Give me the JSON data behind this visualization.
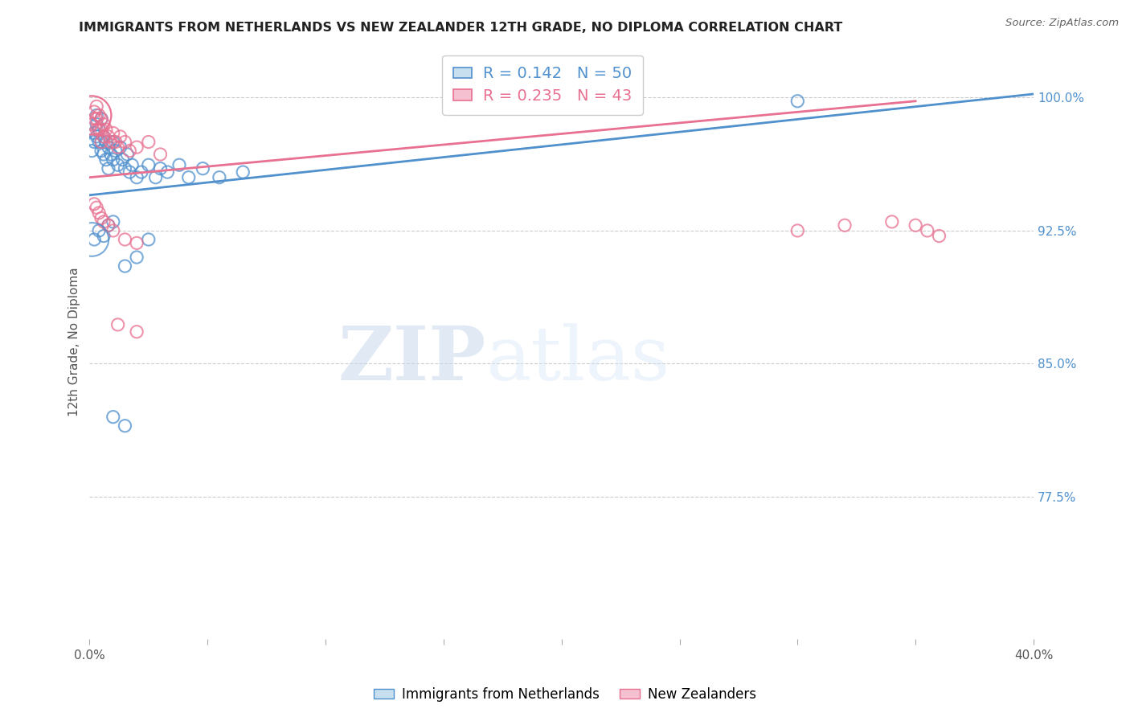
{
  "title": "IMMIGRANTS FROM NETHERLANDS VS NEW ZEALANDER 12TH GRADE, NO DIPLOMA CORRELATION CHART",
  "source": "Source: ZipAtlas.com",
  "ylabel": "12th Grade, No Diploma",
  "xlim": [
    0.0,
    0.4
  ],
  "ylim": [
    0.695,
    1.03
  ],
  "yticks_right": [
    1.0,
    0.925,
    0.85,
    0.775
  ],
  "ytick_right_labels": [
    "100.0%",
    "92.5%",
    "85.0%",
    "77.5%"
  ],
  "blue_color": "#4F90CD",
  "pink_color": "#E87090",
  "blue_R": 0.142,
  "blue_N": 50,
  "pink_R": 0.235,
  "pink_N": 43,
  "legend_label_blue": "Immigrants from Netherlands",
  "legend_label_pink": "New Zealanders",
  "watermark_zip": "ZIP",
  "watermark_atlas": "atlas",
  "blue_scatter_x": [
    0.001,
    0.002,
    0.002,
    0.003,
    0.003,
    0.003,
    0.004,
    0.004,
    0.005,
    0.005,
    0.005,
    0.006,
    0.006,
    0.007,
    0.007,
    0.008,
    0.008,
    0.009,
    0.01,
    0.01,
    0.011,
    0.012,
    0.013,
    0.014,
    0.015,
    0.016,
    0.017,
    0.018,
    0.02,
    0.022,
    0.025,
    0.028,
    0.03,
    0.033,
    0.038,
    0.042,
    0.048,
    0.055,
    0.065,
    0.002,
    0.004,
    0.006,
    0.008,
    0.01,
    0.015,
    0.02,
    0.025,
    0.01,
    0.015,
    0.3
  ],
  "blue_scatter_y": [
    0.97,
    0.98,
    0.975,
    0.985,
    0.978,
    0.99,
    0.982,
    0.975,
    0.988,
    0.975,
    0.97,
    0.978,
    0.968,
    0.975,
    0.965,
    0.972,
    0.96,
    0.968,
    0.975,
    0.965,
    0.97,
    0.962,
    0.972,
    0.965,
    0.96,
    0.968,
    0.958,
    0.962,
    0.955,
    0.958,
    0.962,
    0.955,
    0.96,
    0.958,
    0.962,
    0.955,
    0.96,
    0.955,
    0.958,
    0.92,
    0.925,
    0.922,
    0.928,
    0.93,
    0.905,
    0.91,
    0.92,
    0.82,
    0.815,
    0.998
  ],
  "blue_scatter_size": [
    30,
    30,
    30,
    30,
    30,
    30,
    30,
    30,
    30,
    30,
    30,
    30,
    30,
    30,
    30,
    30,
    30,
    30,
    30,
    30,
    30,
    30,
    30,
    30,
    30,
    30,
    30,
    30,
    30,
    30,
    30,
    30,
    30,
    30,
    30,
    30,
    30,
    30,
    30,
    30,
    30,
    30,
    30,
    30,
    30,
    30,
    30,
    30,
    30,
    30
  ],
  "pink_scatter_x": [
    0.001,
    0.001,
    0.002,
    0.002,
    0.003,
    0.003,
    0.003,
    0.004,
    0.004,
    0.005,
    0.005,
    0.005,
    0.006,
    0.006,
    0.007,
    0.008,
    0.009,
    0.01,
    0.011,
    0.012,
    0.013,
    0.015,
    0.017,
    0.02,
    0.025,
    0.03,
    0.002,
    0.003,
    0.004,
    0.005,
    0.006,
    0.008,
    0.01,
    0.015,
    0.02,
    0.012,
    0.02,
    0.3,
    0.32,
    0.34,
    0.35,
    0.355,
    0.36
  ],
  "pink_scatter_y": [
    0.99,
    0.985,
    0.992,
    0.988,
    0.995,
    0.988,
    0.982,
    0.99,
    0.982,
    0.988,
    0.982,
    0.975,
    0.985,
    0.978,
    0.982,
    0.978,
    0.975,
    0.98,
    0.975,
    0.972,
    0.978,
    0.975,
    0.97,
    0.972,
    0.975,
    0.968,
    0.94,
    0.938,
    0.935,
    0.932,
    0.93,
    0.928,
    0.925,
    0.92,
    0.918,
    0.872,
    0.868,
    0.925,
    0.928,
    0.93,
    0.928,
    0.925,
    0.922
  ],
  "pink_scatter_size": [
    300,
    30,
    30,
    30,
    30,
    30,
    30,
    30,
    30,
    30,
    30,
    30,
    30,
    30,
    30,
    30,
    30,
    30,
    30,
    30,
    30,
    30,
    30,
    30,
    30,
    30,
    30,
    30,
    30,
    30,
    30,
    30,
    30,
    30,
    30,
    30,
    30,
    30,
    30,
    30,
    30,
    30,
    30
  ]
}
